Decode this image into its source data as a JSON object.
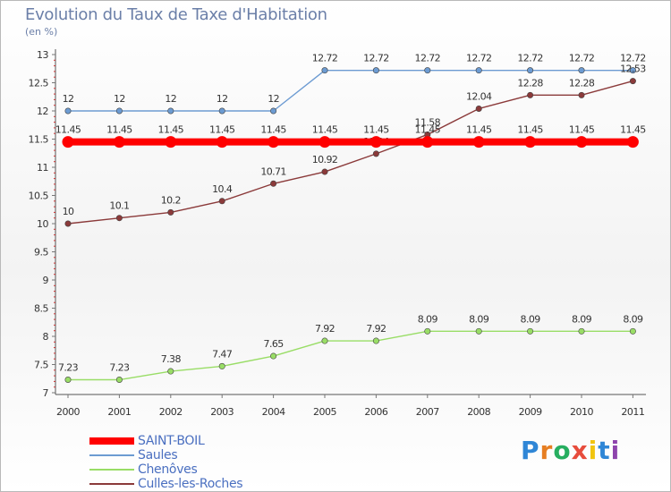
{
  "title": "Evolution du Taux de Taxe d'Habitation",
  "subtitle": "(en %)",
  "brand": {
    "letters": [
      "P",
      "r",
      "o",
      "x",
      "i",
      "t",
      "i"
    ],
    "colors": [
      "#2f86d6",
      "#e67e22",
      "#27ae60",
      "#e74c3c",
      "#f1c40f",
      "#2f86d6",
      "#8e44ad"
    ]
  },
  "chart_data": {
    "type": "line",
    "x": [
      "2000",
      "2001",
      "2002",
      "2003",
      "2004",
      "2005",
      "2006",
      "2007",
      "2008",
      "2009",
      "2010",
      "2011"
    ],
    "ylim": [
      7,
      13
    ],
    "yticks": [
      "7",
      "7.5",
      "8",
      "8.5",
      "9",
      "9.5",
      "10",
      "10.5",
      "11",
      "11.5",
      "12",
      "12.5",
      "13"
    ],
    "grid": false,
    "legend_position": "bottom-left",
    "series": [
      {
        "name": "SAINT-BOIL",
        "color": "#ff0000",
        "thick": true,
        "values": [
          11.45,
          11.45,
          11.45,
          11.45,
          11.45,
          11.45,
          11.45,
          11.45,
          11.45,
          11.45,
          11.45,
          11.45
        ],
        "labels": [
          "11.45",
          "11.45",
          "11.45",
          "11.45",
          "11.45",
          "11.45",
          "11.45",
          "11.45",
          "11.45",
          "11.45",
          "11.45",
          "11.45"
        ]
      },
      {
        "name": "Saules",
        "color": "#6c9bd2",
        "thick": false,
        "values": [
          12,
          12,
          12,
          12,
          12,
          12.72,
          12.72,
          12.72,
          12.72,
          12.72,
          12.72,
          12.72
        ],
        "labels": [
          "12",
          "12",
          "12",
          "12",
          "12",
          "12.72",
          "12.72",
          "12.72",
          "12.72",
          "12.72",
          "12.72",
          "12.72"
        ]
      },
      {
        "name": "Chenôves",
        "color": "#99dd66",
        "thick": false,
        "values": [
          7.23,
          7.23,
          7.38,
          7.47,
          7.65,
          7.92,
          7.92,
          8.09,
          8.09,
          8.09,
          8.09,
          8.09
        ],
        "labels": [
          "7.23",
          "7.23",
          "7.38",
          "7.47",
          "7.65",
          "7.92",
          "7.92",
          "8.09",
          "8.09",
          "8.09",
          "8.09",
          "8.09"
        ]
      },
      {
        "name": "Culles-les-Roches",
        "color": "#8b3a3a",
        "thick": false,
        "values": [
          10,
          10.1,
          10.2,
          10.4,
          10.71,
          10.92,
          11.24,
          11.58,
          12.04,
          12.28,
          12.28,
          12.53
        ],
        "labels": [
          "10",
          "10.1",
          "10.2",
          "10.4",
          "10.71",
          "10.92",
          "11.24",
          "11.58",
          "12.04",
          "12.28",
          "12.28",
          "12.53"
        ]
      }
    ]
  }
}
